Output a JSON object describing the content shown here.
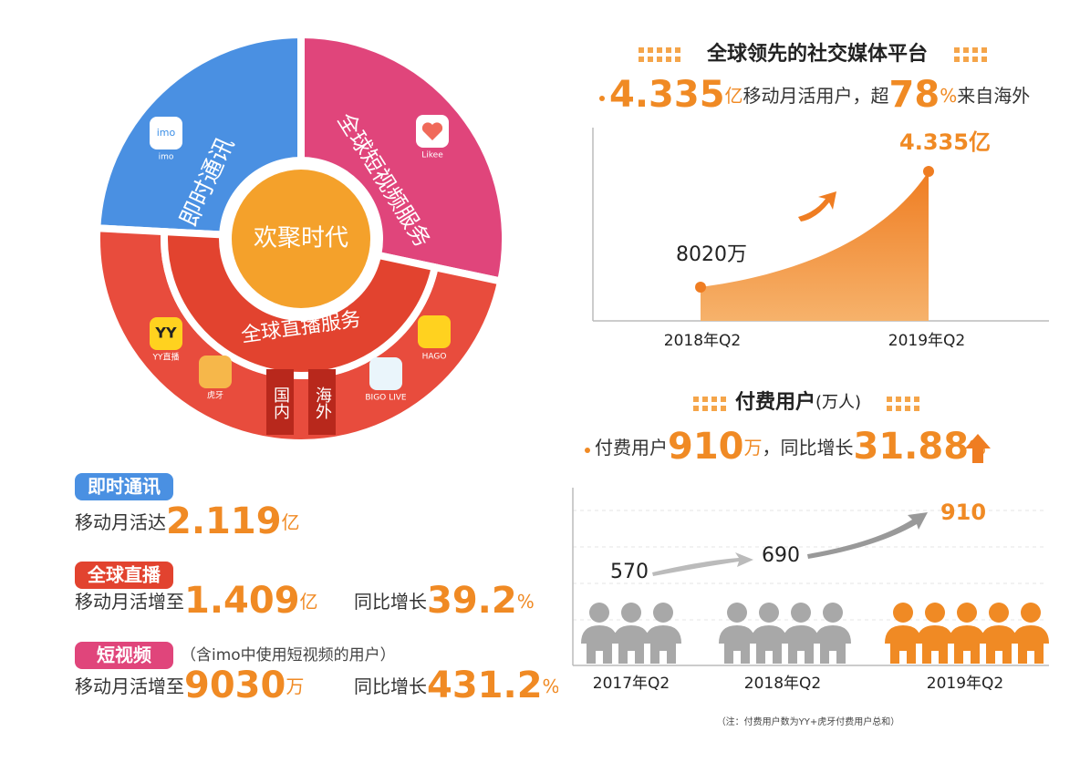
{
  "ring": {
    "center": "欢聚时代",
    "im": "即时通讯",
    "video": "全球短视频服务",
    "live": "全球直播服务",
    "domestic": "国内",
    "overseas": "海外",
    "apps": {
      "imo": "imo",
      "likee": "Likee",
      "yy_icon": "YY",
      "yy": "YY直播",
      "huya": "虎牙",
      "hago": "HAGO",
      "bigo": "BIGO LIVE"
    }
  },
  "stats": [
    {
      "tag": "即时通讯",
      "prefix": "移动月活达",
      "value": "2.119",
      "unit": "亿"
    },
    {
      "tag": "全球直播",
      "prefix": "移动月活增至",
      "value": "1.409",
      "unit": "亿",
      "growth_label": "同比增长",
      "growth": "39.2",
      "growth_unit": "%"
    },
    {
      "tag": "短视频",
      "note": "（含imo中使用短视频的用户）",
      "prefix": "移动月活增至",
      "value": "9030",
      "unit": "万",
      "growth_label": "同比增长",
      "growth": "431.2",
      "growth_unit": "%"
    }
  ],
  "mau": {
    "title": "全球领先的社交媒体平台",
    "headline": {
      "value": "4.335",
      "unit": "亿",
      "text1": "移动月活用户，超",
      "share": "78",
      "share_unit": "%",
      "text2": "来自海外"
    },
    "points": [
      {
        "label": "8020万",
        "x": "2018年Q2"
      },
      {
        "label": "4.335亿",
        "x": "2019年Q2"
      }
    ]
  },
  "paid": {
    "title": "付费用户",
    "unit": "(万人)",
    "headline": {
      "text1": "付费用户",
      "value": "910",
      "unit": "万",
      "text2": "，同比增长",
      "growth": "31.88",
      "growth_unit": "%"
    },
    "points": [
      {
        "value": 570,
        "x": "2017年Q2"
      },
      {
        "value": 690,
        "x": "2018年Q2"
      },
      {
        "value": 910,
        "x": "2019年Q2"
      }
    ],
    "note": "（注：付费用户数为YY+虎牙付费用户总和）"
  }
}
